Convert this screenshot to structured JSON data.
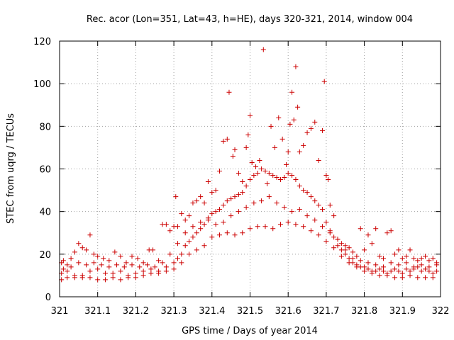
{
  "chart_data": {
    "type": "scatter",
    "title": "Rec. acor (Lon=351, Lat=43, h=HE), days 320-321, 2014, window 004",
    "xlabel": "GPS time / Days of year 2014",
    "ylabel": "STEC from uqrg / TECUs",
    "xlim": [
      321,
      322
    ],
    "ylim": [
      0,
      120
    ],
    "grid": true,
    "marker": "+",
    "color": "#cc0000",
    "x_ticks": [
      321,
      321.1,
      321.2,
      321.3,
      321.4,
      321.5,
      321.6,
      321.7,
      321.8,
      321.9,
      322
    ],
    "x_tick_labels": [
      "321",
      "321.1",
      "321.2",
      "321.3",
      "321.4",
      "321.5",
      "321.6",
      "321.7",
      "321.8",
      "321.9",
      "322"
    ],
    "y_ticks": [
      0,
      20,
      40,
      60,
      80,
      100,
      120
    ],
    "y_tick_labels": [
      "0",
      "20",
      "40",
      "60",
      "80",
      "100",
      "120"
    ],
    "series": [
      {
        "name": "STEC",
        "points": [
          [
            321.005,
            16
          ],
          [
            321.01,
            17
          ],
          [
            321.02,
            15
          ],
          [
            321.03,
            18
          ],
          [
            321.04,
            21
          ],
          [
            321.05,
            25
          ],
          [
            321.06,
            23
          ],
          [
            321.07,
            22
          ],
          [
            321.08,
            29
          ],
          [
            321.09,
            20
          ],
          [
            321.1,
            19
          ],
          [
            321.115,
            18
          ],
          [
            321.13,
            17
          ],
          [
            321.145,
            21
          ],
          [
            321.16,
            19
          ],
          [
            321.175,
            16
          ],
          [
            321.19,
            19
          ],
          [
            321.205,
            18
          ],
          [
            321.22,
            16
          ],
          [
            321.235,
            22
          ],
          [
            321.245,
            22
          ],
          [
            321.26,
            17
          ],
          [
            321.27,
            34
          ],
          [
            321.28,
            34
          ],
          [
            321.29,
            31
          ],
          [
            321.3,
            33
          ],
          [
            321.305,
            47
          ],
          [
            321.31,
            33
          ],
          [
            321.32,
            39
          ],
          [
            321.33,
            36
          ],
          [
            321.34,
            38
          ],
          [
            321.35,
            44
          ],
          [
            321.36,
            45
          ],
          [
            321.37,
            47
          ],
          [
            321.38,
            44
          ],
          [
            321.39,
            54
          ],
          [
            321.4,
            49
          ],
          [
            321.41,
            50
          ],
          [
            321.42,
            59
          ],
          [
            321.43,
            73
          ],
          [
            321.44,
            74
          ],
          [
            321.445,
            96
          ],
          [
            321.455,
            66
          ],
          [
            321.46,
            69
          ],
          [
            321.47,
            58
          ],
          [
            321.48,
            54
          ],
          [
            321.49,
            70
          ],
          [
            321.495,
            76
          ],
          [
            321.5,
            85
          ],
          [
            321.505,
            63
          ],
          [
            321.515,
            61
          ],
          [
            321.525,
            64
          ],
          [
            321.535,
            116
          ],
          [
            321.545,
            53
          ],
          [
            321.555,
            80
          ],
          [
            321.565,
            70
          ],
          [
            321.575,
            84
          ],
          [
            321.585,
            74
          ],
          [
            321.595,
            62
          ],
          [
            321.6,
            68
          ],
          [
            321.605,
            81
          ],
          [
            321.61,
            96
          ],
          [
            321.615,
            83
          ],
          [
            321.62,
            108
          ],
          [
            321.625,
            89
          ],
          [
            321.63,
            68
          ],
          [
            321.64,
            71
          ],
          [
            321.65,
            77
          ],
          [
            321.66,
            79
          ],
          [
            321.67,
            82
          ],
          [
            321.68,
            64
          ],
          [
            321.69,
            78
          ],
          [
            321.695,
            101
          ],
          [
            321.7,
            57
          ],
          [
            321.705,
            55
          ],
          [
            321.71,
            43
          ],
          [
            321.72,
            38
          ],
          [
            321.73,
            27
          ],
          [
            321.74,
            25
          ],
          [
            321.75,
            24
          ],
          [
            321.76,
            23
          ],
          [
            321.77,
            21
          ],
          [
            321.78,
            19
          ],
          [
            321.79,
            32
          ],
          [
            321.8,
            22
          ],
          [
            321.81,
            29
          ],
          [
            321.82,
            25
          ],
          [
            321.83,
            32
          ],
          [
            321.84,
            19
          ],
          [
            321.85,
            18
          ],
          [
            321.86,
            30
          ],
          [
            321.87,
            31
          ],
          [
            321.88,
            20
          ],
          [
            321.89,
            22
          ],
          [
            321.9,
            18
          ],
          [
            321.91,
            19
          ],
          [
            321.92,
            22
          ],
          [
            321.93,
            18
          ],
          [
            321.94,
            17
          ],
          [
            321.95,
            18
          ],
          [
            321.96,
            19
          ],
          [
            321.97,
            17
          ],
          [
            321.98,
            18
          ],
          [
            321.99,
            16
          ],
          [
            321.005,
            11
          ],
          [
            321.02,
            12
          ],
          [
            321.04,
            10
          ],
          [
            321.06,
            10
          ],
          [
            321.08,
            12
          ],
          [
            321.1,
            13
          ],
          [
            321.12,
            11
          ],
          [
            321.14,
            11
          ],
          [
            321.16,
            12
          ],
          [
            321.18,
            10
          ],
          [
            321.2,
            11
          ],
          [
            321.22,
            12
          ],
          [
            321.24,
            13
          ],
          [
            321.26,
            12
          ],
          [
            321.28,
            14
          ],
          [
            321.3,
            16
          ],
          [
            321.31,
            18
          ],
          [
            321.32,
            20
          ],
          [
            321.33,
            24
          ],
          [
            321.34,
            26
          ],
          [
            321.35,
            28
          ],
          [
            321.36,
            30
          ],
          [
            321.37,
            32
          ],
          [
            321.38,
            34
          ],
          [
            321.39,
            37
          ],
          [
            321.4,
            39
          ],
          [
            321.41,
            40
          ],
          [
            321.42,
            41
          ],
          [
            321.43,
            43
          ],
          [
            321.44,
            45
          ],
          [
            321.45,
            46
          ],
          [
            321.46,
            47
          ],
          [
            321.47,
            48
          ],
          [
            321.48,
            49
          ],
          [
            321.49,
            52
          ],
          [
            321.5,
            55
          ],
          [
            321.51,
            57
          ],
          [
            321.52,
            58
          ],
          [
            321.53,
            60
          ],
          [
            321.54,
            59
          ],
          [
            321.55,
            58
          ],
          [
            321.56,
            57
          ],
          [
            321.57,
            56
          ],
          [
            321.58,
            55
          ],
          [
            321.59,
            56
          ],
          [
            321.6,
            58
          ],
          [
            321.61,
            57
          ],
          [
            321.62,
            55
          ],
          [
            321.63,
            52
          ],
          [
            321.64,
            50
          ],
          [
            321.65,
            49
          ],
          [
            321.66,
            47
          ],
          [
            321.67,
            45
          ],
          [
            321.68,
            43
          ],
          [
            321.69,
            41
          ],
          [
            321.7,
            35
          ],
          [
            321.71,
            31
          ],
          [
            321.72,
            28
          ],
          [
            321.73,
            24
          ],
          [
            321.74,
            22
          ],
          [
            321.75,
            20
          ],
          [
            321.76,
            18
          ],
          [
            321.77,
            16
          ],
          [
            321.78,
            15
          ],
          [
            321.79,
            14
          ],
          [
            321.8,
            14
          ],
          [
            321.81,
            13
          ],
          [
            321.82,
            12
          ],
          [
            321.83,
            12
          ],
          [
            321.84,
            13
          ],
          [
            321.85,
            12
          ],
          [
            321.86,
            11
          ],
          [
            321.87,
            12
          ],
          [
            321.88,
            13
          ],
          [
            321.89,
            12
          ],
          [
            321.9,
            11
          ],
          [
            321.91,
            13
          ],
          [
            321.92,
            12
          ],
          [
            321.93,
            13
          ],
          [
            321.94,
            14
          ],
          [
            321.95,
            12
          ],
          [
            321.96,
            13
          ],
          [
            321.97,
            12
          ],
          [
            321.98,
            11
          ],
          [
            321.99,
            12
          ],
          [
            321.005,
            8
          ],
          [
            321.02,
            9
          ],
          [
            321.04,
            9
          ],
          [
            321.06,
            9
          ],
          [
            321.08,
            9
          ],
          [
            321.1,
            8
          ],
          [
            321.12,
            8
          ],
          [
            321.14,
            9
          ],
          [
            321.16,
            8
          ],
          [
            321.18,
            9
          ],
          [
            321.2,
            9
          ],
          [
            321.22,
            10
          ],
          [
            321.24,
            11
          ],
          [
            321.26,
            11
          ],
          [
            321.28,
            12
          ],
          [
            321.3,
            13
          ],
          [
            321.32,
            16
          ],
          [
            321.34,
            20
          ],
          [
            321.36,
            22
          ],
          [
            321.38,
            24
          ],
          [
            321.4,
            28
          ],
          [
            321.42,
            29
          ],
          [
            321.44,
            30
          ],
          [
            321.46,
            29
          ],
          [
            321.48,
            30
          ],
          [
            321.5,
            32
          ],
          [
            321.52,
            33
          ],
          [
            321.54,
            33
          ],
          [
            321.56,
            32
          ],
          [
            321.58,
            34
          ],
          [
            321.6,
            35
          ],
          [
            321.62,
            34
          ],
          [
            321.64,
            33
          ],
          [
            321.66,
            31
          ],
          [
            321.68,
            29
          ],
          [
            321.7,
            26
          ],
          [
            321.72,
            23
          ],
          [
            321.74,
            19
          ],
          [
            321.76,
            16
          ],
          [
            321.78,
            14
          ],
          [
            321.8,
            12
          ],
          [
            321.82,
            11
          ],
          [
            321.84,
            10
          ],
          [
            321.86,
            10
          ],
          [
            321.88,
            9
          ],
          [
            321.9,
            9
          ],
          [
            321.92,
            10
          ],
          [
            321.94,
            9
          ],
          [
            321.96,
            9
          ],
          [
            321.98,
            9
          ],
          [
            321.01,
            13
          ],
          [
            321.03,
            14
          ],
          [
            321.05,
            16
          ],
          [
            321.07,
            15
          ],
          [
            321.09,
            16
          ],
          [
            321.11,
            15
          ],
          [
            321.13,
            14
          ],
          [
            321.15,
            15
          ],
          [
            321.17,
            14
          ],
          [
            321.19,
            15
          ],
          [
            321.21,
            14
          ],
          [
            321.23,
            15
          ],
          [
            321.25,
            14
          ],
          [
            321.27,
            16
          ],
          [
            321.29,
            20
          ],
          [
            321.31,
            25
          ],
          [
            321.33,
            30
          ],
          [
            321.35,
            33
          ],
          [
            321.37,
            35
          ],
          [
            321.39,
            36
          ],
          [
            321.41,
            34
          ],
          [
            321.43,
            35
          ],
          [
            321.45,
            38
          ],
          [
            321.47,
            40
          ],
          [
            321.49,
            42
          ],
          [
            321.51,
            44
          ],
          [
            321.53,
            45
          ],
          [
            321.55,
            47
          ],
          [
            321.57,
            44
          ],
          [
            321.59,
            42
          ],
          [
            321.61,
            40
          ],
          [
            321.63,
            41
          ],
          [
            321.65,
            38
          ],
          [
            321.67,
            36
          ],
          [
            321.69,
            33
          ],
          [
            321.71,
            30
          ],
          [
            321.73,
            27
          ],
          [
            321.75,
            22
          ],
          [
            321.77,
            18
          ],
          [
            321.79,
            17
          ],
          [
            321.81,
            16
          ],
          [
            321.83,
            15
          ],
          [
            321.85,
            14
          ],
          [
            321.87,
            16
          ],
          [
            321.89,
            15
          ],
          [
            321.91,
            16
          ],
          [
            321.93,
            14
          ],
          [
            321.95,
            15
          ],
          [
            321.97,
            14
          ],
          [
            321.99,
            15
          ]
        ]
      }
    ]
  }
}
